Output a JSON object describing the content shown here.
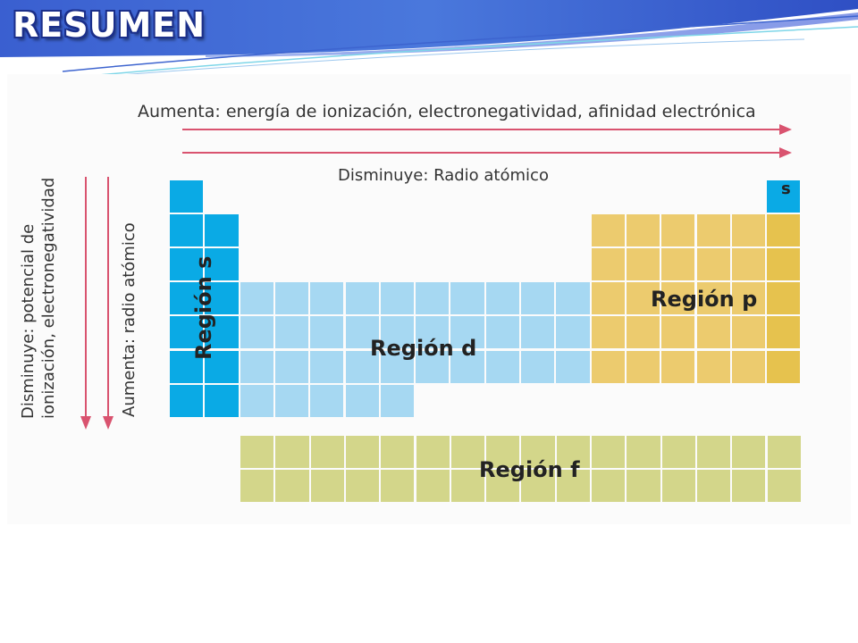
{
  "header": {
    "title": "RESUMEN"
  },
  "colors": {
    "s_block": "#0aaae5",
    "d_block": "#a6d8f2",
    "p_block": "#eccb6e",
    "p_block_last": "#e6c24e",
    "f_block": "#d3d68a",
    "grid_line": "#ffffff",
    "arrow": "#d9536f",
    "banner": "#3f63c9"
  },
  "figure": {
    "top_trend": "Aumenta: energía de ionización, electronegatividad, afinidad electrónica",
    "top_trend_2": "Disminuye: Radio atómico",
    "left_trend_1_line1": "Disminuye: potencial de",
    "left_trend_1_line2": "ionización, electronegatividad",
    "left_trend_2": "Aumenta: radio atómico",
    "region_s": "Región s",
    "region_d": "Región d",
    "region_p": "Región p",
    "region_f": "Región f",
    "helium_label": "s"
  }
}
